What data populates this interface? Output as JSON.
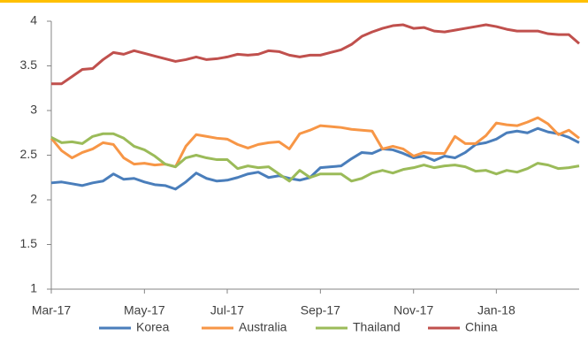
{
  "chart_data": {
    "type": "line",
    "categories": [
      "Mar-17",
      null,
      null,
      null,
      null,
      null,
      null,
      null,
      null,
      "May-17",
      null,
      null,
      null,
      null,
      null,
      null,
      null,
      "Jul-17",
      null,
      null,
      null,
      null,
      null,
      null,
      null,
      null,
      "Sep-17",
      null,
      null,
      null,
      null,
      null,
      null,
      null,
      null,
      "Nov-17",
      null,
      null,
      null,
      null,
      null,
      null,
      null,
      "Jan-18",
      null,
      null,
      null,
      null,
      null,
      null,
      null,
      null
    ],
    "series": [
      {
        "name": "Korea",
        "color": "#4a7ebb",
        "values": [
          2.19,
          2.2,
          2.18,
          2.16,
          2.19,
          2.21,
          2.29,
          2.23,
          2.24,
          2.2,
          2.17,
          2.16,
          2.12,
          2.2,
          2.3,
          2.24,
          2.21,
          2.22,
          2.25,
          2.29,
          2.31,
          2.25,
          2.27,
          2.24,
          2.22,
          2.25,
          2.36,
          2.37,
          2.38,
          2.46,
          2.53,
          2.52,
          2.57,
          2.56,
          2.52,
          2.47,
          2.49,
          2.44,
          2.49,
          2.47,
          2.53,
          2.62,
          2.64,
          2.68,
          2.75,
          2.77,
          2.75,
          2.8,
          2.76,
          2.74,
          2.7,
          2.64
        ]
      },
      {
        "name": "Australia",
        "color": "#f79646",
        "values": [
          2.69,
          2.55,
          2.47,
          2.53,
          2.57,
          2.64,
          2.62,
          2.47,
          2.4,
          2.41,
          2.39,
          2.4,
          2.37,
          2.6,
          2.73,
          2.71,
          2.69,
          2.68,
          2.62,
          2.58,
          2.62,
          2.64,
          2.65,
          2.57,
          2.74,
          2.78,
          2.83,
          2.82,
          2.81,
          2.79,
          2.78,
          2.77,
          2.57,
          2.6,
          2.57,
          2.49,
          2.53,
          2.52,
          2.52,
          2.71,
          2.63,
          2.63,
          2.72,
          2.86,
          2.84,
          2.83,
          2.87,
          2.92,
          2.85,
          2.73,
          2.78,
          2.69
        ]
      },
      {
        "name": "Thailand",
        "color": "#9bbb59",
        "values": [
          2.7,
          2.64,
          2.65,
          2.63,
          2.71,
          2.74,
          2.74,
          2.69,
          2.6,
          2.56,
          2.49,
          2.4,
          2.37,
          2.47,
          2.5,
          2.47,
          2.45,
          2.45,
          2.35,
          2.38,
          2.36,
          2.37,
          2.29,
          2.21,
          2.33,
          2.25,
          2.29,
          2.29,
          2.29,
          2.21,
          2.24,
          2.3,
          2.33,
          2.3,
          2.34,
          2.36,
          2.39,
          2.36,
          2.38,
          2.39,
          2.37,
          2.32,
          2.33,
          2.29,
          2.33,
          2.31,
          2.35,
          2.41,
          2.39,
          2.35,
          2.36,
          2.38
        ]
      },
      {
        "name": "China",
        "color": "#c0504d",
        "values": [
          3.3,
          3.3,
          3.38,
          3.46,
          3.47,
          3.57,
          3.65,
          3.63,
          3.67,
          3.64,
          3.61,
          3.58,
          3.55,
          3.57,
          3.6,
          3.57,
          3.58,
          3.6,
          3.63,
          3.62,
          3.63,
          3.67,
          3.66,
          3.62,
          3.6,
          3.62,
          3.62,
          3.65,
          3.68,
          3.74,
          3.83,
          3.88,
          3.92,
          3.95,
          3.96,
          3.92,
          3.93,
          3.89,
          3.88,
          3.9,
          3.92,
          3.94,
          3.96,
          3.94,
          3.91,
          3.89,
          3.89,
          3.89,
          3.86,
          3.85,
          3.85,
          3.75
        ]
      }
    ],
    "ylim": [
      1,
      4
    ],
    "yticks": [
      1,
      1.5,
      2,
      2.5,
      3,
      3.5,
      4
    ],
    "grid": false,
    "legend": "bottom"
  }
}
